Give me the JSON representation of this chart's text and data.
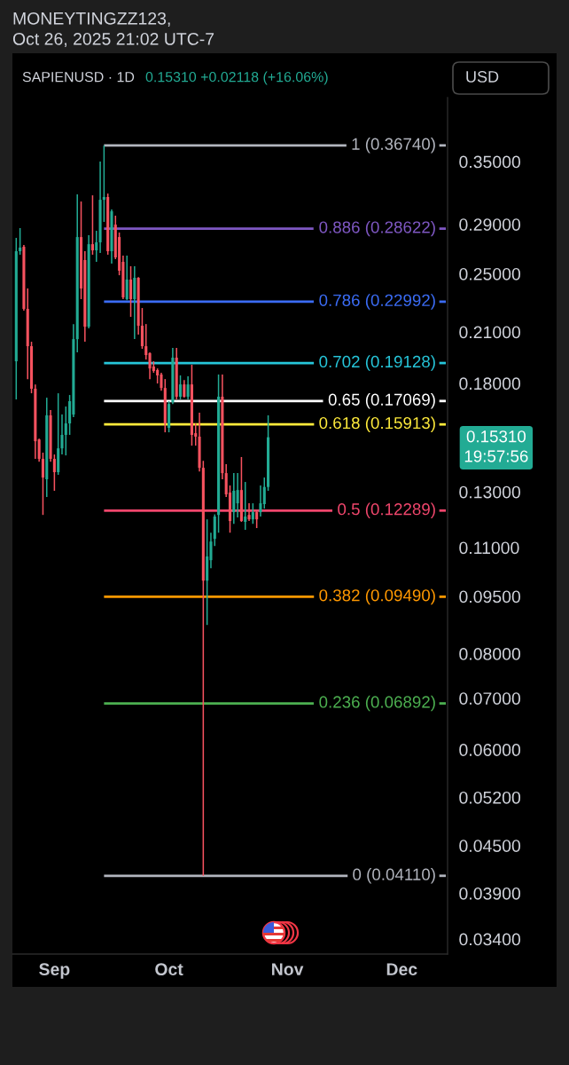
{
  "chart_data": {
    "type": "candlestick",
    "title": "SAPIENUSD · 1D",
    "subtitle": "0.15310 +0.02118 (+16.06%)",
    "annotations": [
      "MONEYTINGZZ123,\nOct 26, 2025 21:02 UTC-7",
      "USD",
      "0.15310\n19:57:56"
    ],
    "x": [
      "2025-08-22",
      "2025-08-23",
      "2025-08-24",
      "2025-08-25",
      "2025-08-26",
      "2025-08-27",
      "2025-08-28",
      "2025-08-29",
      "2025-08-30",
      "2025-08-31",
      "2025-09-01",
      "2025-09-02",
      "2025-09-03",
      "2025-09-04",
      "2025-09-05",
      "2025-09-06",
      "2025-09-07",
      "2025-09-08",
      "2025-09-09",
      "2025-09-10",
      "2025-09-11",
      "2025-09-12",
      "2025-09-13",
      "2025-09-14",
      "2025-09-15",
      "2025-09-16",
      "2025-09-17",
      "2025-09-18",
      "2025-09-19",
      "2025-09-20",
      "2025-09-21",
      "2025-09-22",
      "2025-09-23",
      "2025-09-24",
      "2025-09-25",
      "2025-09-26",
      "2025-09-27",
      "2025-09-28",
      "2025-09-29",
      "2025-09-30",
      "2025-10-01",
      "2025-10-02",
      "2025-10-03",
      "2025-10-04",
      "2025-10-05",
      "2025-10-06",
      "2025-10-07",
      "2025-10-08",
      "2025-10-09",
      "2025-10-10",
      "2025-10-11",
      "2025-10-12",
      "2025-10-13",
      "2025-10-14",
      "2025-10-15",
      "2025-10-16",
      "2025-10-17",
      "2025-10-18",
      "2025-10-19",
      "2025-10-20",
      "2025-10-21",
      "2025-10-22",
      "2025-10-23",
      "2025-10-24",
      "2025-10-25",
      "2025-10-26",
      "2025-10-27"
    ],
    "ohlc": [
      [
        0.1923,
        0.2784,
        0.1715,
        0.2675
      ],
      [
        0.2675,
        0.2867,
        0.2647,
        0.2704
      ],
      [
        0.2711,
        0.2725,
        0.2238,
        0.225
      ],
      [
        0.225,
        0.2392,
        0.1823,
        0.2012
      ],
      [
        0.2012,
        0.2039,
        0.1747,
        0.1771
      ],
      [
        0.1771,
        0.1794,
        0.1435,
        0.1513
      ],
      [
        0.1521,
        0.1525,
        0.1423,
        0.1435
      ],
      [
        0.1435,
        0.1462,
        0.1213,
        0.1357
      ],
      [
        0.135,
        0.1724,
        0.128,
        0.1635
      ],
      [
        0.1635,
        0.1661,
        0.1423,
        0.1435
      ],
      [
        0.1435,
        0.1454,
        0.1304,
        0.1379
      ],
      [
        0.1379,
        0.1747,
        0.1368,
        0.1481
      ],
      [
        0.1481,
        0.1639,
        0.1454,
        0.1542
      ],
      [
        0.1542,
        0.1679,
        0.145,
        0.1596
      ],
      [
        0.1596,
        0.1738,
        0.1542,
        0.1706
      ],
      [
        0.1639,
        0.215,
        0.1626,
        0.2055
      ],
      [
        0.2055,
        0.3172,
        0.1975,
        0.2791
      ],
      [
        0.2791,
        0.3105,
        0.2317,
        0.2392
      ],
      [
        0.2605,
        0.2675,
        0.2039,
        0.2133
      ],
      [
        0.2133,
        0.2806,
        0.2122,
        0.2732
      ],
      [
        0.2732,
        0.3163,
        0.2647,
        0.2682
      ],
      [
        0.2682,
        0.2844,
        0.2591,
        0.2747
      ],
      [
        0.2747,
        0.35,
        0.2661,
        0.3121
      ],
      [
        0.3121,
        0.3674,
        0.2921,
        0.3147
      ],
      [
        0.3147,
        0.318,
        0.2647,
        0.2675
      ],
      [
        0.2675,
        0.3031,
        0.2577,
        0.3015
      ],
      [
        0.2897,
        0.2976,
        0.2612,
        0.2626
      ],
      [
        0.2791,
        0.2829,
        0.2489,
        0.2523
      ],
      [
        0.2591,
        0.264,
        0.2317,
        0.2329
      ],
      [
        0.2317,
        0.264,
        0.231,
        0.2457
      ],
      [
        0.2457,
        0.2557,
        0.2197,
        0.2317
      ],
      [
        0.2317,
        0.2557,
        0.2055,
        0.247
      ],
      [
        0.247,
        0.2475,
        0.2083,
        0.2139
      ],
      [
        0.2139,
        0.2256,
        0.1996,
        0.2012
      ],
      [
        0.2012,
        0.215,
        0.1933,
        0.1959
      ],
      [
        0.197,
        0.1975,
        0.1823,
        0.1882
      ],
      [
        0.1893,
        0.1923,
        0.1858,
        0.1868
      ],
      [
        0.1873,
        0.1882,
        0.1799,
        0.1843
      ],
      [
        0.1848,
        0.1858,
        0.1761,
        0.1775
      ],
      [
        0.1775,
        0.1823,
        0.1554,
        0.1596
      ],
      [
        0.1575,
        0.1706,
        0.1554,
        0.1692
      ],
      [
        0.1701,
        0.2001,
        0.1692,
        0.1944
      ],
      [
        0.1944,
        0.2001,
        0.1715,
        0.1729
      ],
      [
        0.1729,
        0.1843,
        0.1715,
        0.1794
      ],
      [
        0.1794,
        0.1818,
        0.1724,
        0.1729
      ],
      [
        0.1729,
        0.1838,
        0.1715,
        0.1794
      ],
      [
        0.1794,
        0.1903,
        0.1493,
        0.1542
      ],
      [
        0.155,
        0.1596,
        0.1493,
        0.1534
      ],
      [
        0.1534,
        0.1648,
        0.1382,
        0.1397
      ],
      [
        0.1397,
        0.1427,
        0.0411,
        0.0996
      ],
      [
        0.0996,
        0.1197,
        0.0872,
        0.1071
      ],
      [
        0.1059,
        0.115,
        0.1034,
        0.112
      ],
      [
        0.1129,
        0.1215,
        0.1105,
        0.1207
      ],
      [
        0.1213,
        0.1848,
        0.115,
        0.1729
      ],
      [
        0.1729,
        0.1848,
        0.135,
        0.1375
      ],
      [
        0.1375,
        0.1412,
        0.128,
        0.129
      ],
      [
        0.1297,
        0.1325,
        0.115,
        0.1191
      ],
      [
        0.1223,
        0.1375,
        0.1181,
        0.1304
      ],
      [
        0.1256,
        0.1375,
        0.1204,
        0.1307
      ],
      [
        0.1307,
        0.1443,
        0.1188,
        0.1191
      ],
      [
        0.1188,
        0.1339,
        0.116,
        0.1207
      ],
      [
        0.1213,
        0.1256,
        0.1191,
        0.1197
      ],
      [
        0.1197,
        0.1256,
        0.1181,
        0.1223
      ],
      [
        0.1223,
        0.123,
        0.1166,
        0.1197
      ],
      [
        0.1223,
        0.1325,
        0.1207,
        0.1256
      ],
      [
        0.1253,
        0.1357,
        0.1236,
        0.1319
      ],
      [
        0.1319,
        0.1635,
        0.1304,
        0.1531
      ]
    ],
    "colors": [
      "#22ab94",
      "#22ab94",
      "#f7525f",
      "#f7525f",
      "#f7525f",
      "#f7525f",
      "#f7525f",
      "#f7525f",
      "#22ab94",
      "#f7525f",
      "#f7525f",
      "#22ab94",
      "#22ab94",
      "#22ab94",
      "#22ab94",
      "#22ab94",
      "#22ab94",
      "#f7525f",
      "#f7525f",
      "#22ab94",
      "#f7525f",
      "#22ab94",
      "#22ab94",
      "#22ab94",
      "#f7525f",
      "#22ab94",
      "#f7525f",
      "#f7525f",
      "#f7525f",
      "#22ab94",
      "#f7525f",
      "#22ab94",
      "#f7525f",
      "#f7525f",
      "#f7525f",
      "#f7525f",
      "#f7525f",
      "#f7525f",
      "#f7525f",
      "#f7525f",
      "#22ab94",
      "#22ab94",
      "#f7525f",
      "#22ab94",
      "#f7525f",
      "#22ab94",
      "#f7525f",
      "#f7525f",
      "#f7525f",
      "#f7525f",
      "#22ab94",
      "#22ab94",
      "#22ab94",
      "#22ab94",
      "#f7525f",
      "#f7525f",
      "#f7525f",
      "#22ab94",
      "#22ab94",
      "#f7525f",
      "#22ab94",
      "#f7525f",
      "#22ab94",
      "#f7525f",
      "#22ab94",
      "#22ab94",
      "#22ab94"
    ],
    "log": true,
    "ylim": [
      0.0325,
      0.424
    ],
    "yticks": [
      {
        "value": 0.35,
        "label": "0.35000"
      },
      {
        "value": 0.29,
        "label": "0.29000"
      },
      {
        "value": 0.25,
        "label": "0.25000"
      },
      {
        "value": 0.21,
        "label": "0.21000"
      },
      {
        "value": 0.18,
        "label": "0.18000"
      },
      {
        "value": 0.13,
        "label": "0.13000"
      },
      {
        "value": 0.11,
        "label": "0.11000"
      },
      {
        "value": 0.095,
        "label": "0.09500"
      },
      {
        "value": 0.08,
        "label": "0.08000"
      },
      {
        "value": 0.07,
        "label": "0.07000"
      },
      {
        "value": 0.06,
        "label": "0.06000"
      },
      {
        "value": 0.052,
        "label": "0.05200"
      },
      {
        "value": 0.045,
        "label": "0.04500"
      },
      {
        "value": 0.039,
        "label": "0.03900"
      },
      {
        "value": 0.034,
        "label": "0.03400"
      }
    ],
    "xlim": [
      "2025-08-21",
      "2025-12-13"
    ],
    "xticks": [
      {
        "value": "2025-09-01",
        "label": "Sep"
      },
      {
        "value": "2025-10-01",
        "label": "Oct"
      },
      {
        "value": "2025-11-01",
        "label": "Nov"
      },
      {
        "value": "2025-12-01",
        "label": "Dec"
      }
    ],
    "ref_lines": [
      {
        "axis": "y",
        "value": 0.3674,
        "label": "1 (0.36740)",
        "color": "#b2b5be"
      },
      {
        "axis": "y",
        "value": 0.28622,
        "label": "0.886 (0.28622)",
        "color": "#7e57c2"
      },
      {
        "axis": "y",
        "value": 0.22992,
        "label": "0.786 (0.22992)",
        "color": "#3b6cf5"
      },
      {
        "axis": "y",
        "value": 0.19128,
        "label": "0.702 (0.19128)",
        "color": "#26c6da"
      },
      {
        "axis": "y",
        "value": 0.17069,
        "label": "0.65 (0.17069)",
        "color": "#ffffff"
      },
      {
        "axis": "y",
        "value": 0.15913,
        "label": "0.618 (0.15913)",
        "color": "#ffeb3b"
      },
      {
        "axis": "y",
        "value": 0.12289,
        "label": "0.5 (0.12289)",
        "color": "#f0466c"
      },
      {
        "axis": "y",
        "value": 0.0949,
        "label": "0.382 (0.09490)",
        "color": "#ff9800"
      },
      {
        "axis": "y",
        "value": 0.06892,
        "label": "0.236 (0.06892)",
        "color": "#4caf50"
      },
      {
        "axis": "y",
        "value": 0.0411,
        "label": "0 (0.04110)",
        "color": "#b2b5be"
      }
    ]
  }
}
